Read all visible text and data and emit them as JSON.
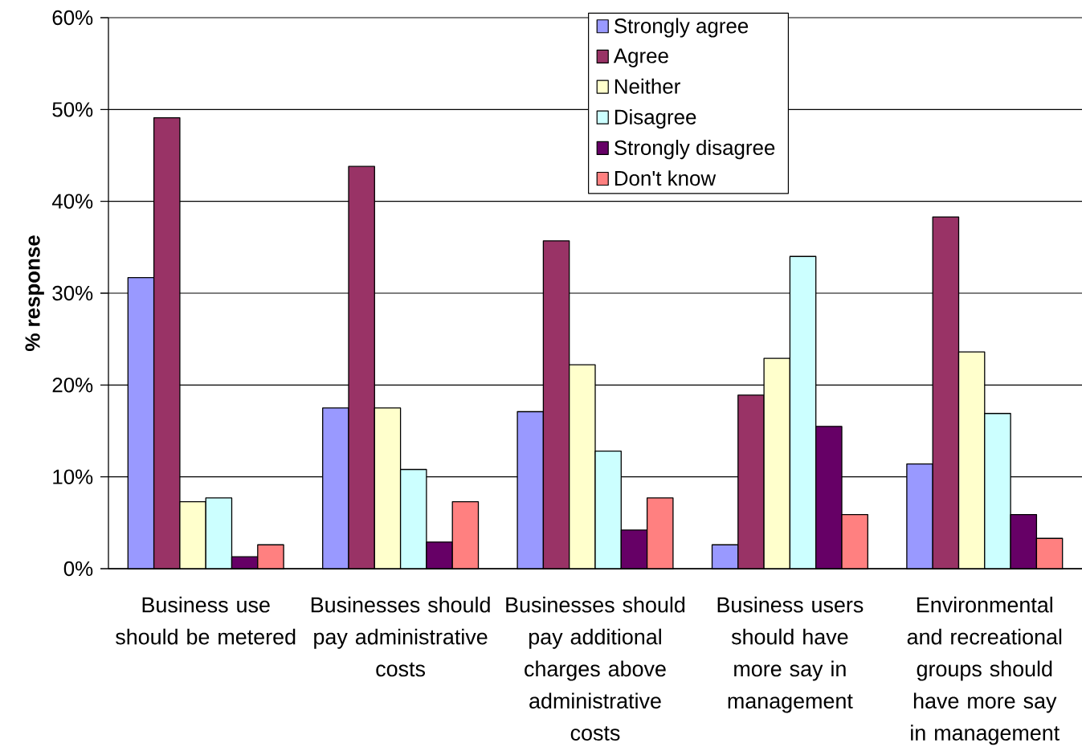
{
  "chart_data": {
    "type": "bar",
    "ylabel": "% response",
    "categories": [
      "Business use should be metered",
      "Businesses should pay administrative costs",
      "Businesses should pay additional charges above administrative costs",
      "Business users should have more say in management",
      "Environmental and recreational groups should have more say in management"
    ],
    "series": [
      {
        "name": "Strongly agree",
        "color": "#9999ff",
        "values": [
          31.7,
          17.5,
          17.1,
          2.6,
          11.4
        ]
      },
      {
        "name": "Agree",
        "color": "#993366",
        "values": [
          49.1,
          43.8,
          35.7,
          18.9,
          38.3
        ]
      },
      {
        "name": "Neither",
        "color": "#ffffcc",
        "values": [
          7.3,
          17.5,
          22.2,
          22.9,
          23.6
        ]
      },
      {
        "name": "Disagree",
        "color": "#ccffff",
        "values": [
          7.7,
          10.8,
          12.8,
          34.0,
          16.9
        ]
      },
      {
        "name": "Strongly disagree",
        "color": "#660066",
        "values": [
          1.3,
          2.9,
          4.2,
          15.5,
          5.9
        ]
      },
      {
        "name": "Don't know",
        "color": "#ff8080",
        "values": [
          2.6,
          7.3,
          7.7,
          5.9,
          3.3
        ]
      }
    ],
    "ylim": [
      0,
      60
    ],
    "yticks": [
      {
        "value": 0,
        "label": "0%"
      },
      {
        "value": 10,
        "label": "10%"
      },
      {
        "value": 20,
        "label": "20%"
      },
      {
        "value": 30,
        "label": "30%"
      },
      {
        "value": 40,
        "label": "40%"
      },
      {
        "value": 50,
        "label": "50%"
      },
      {
        "value": 60,
        "label": "60%"
      }
    ],
    "grid": "y",
    "legend": "top right"
  }
}
